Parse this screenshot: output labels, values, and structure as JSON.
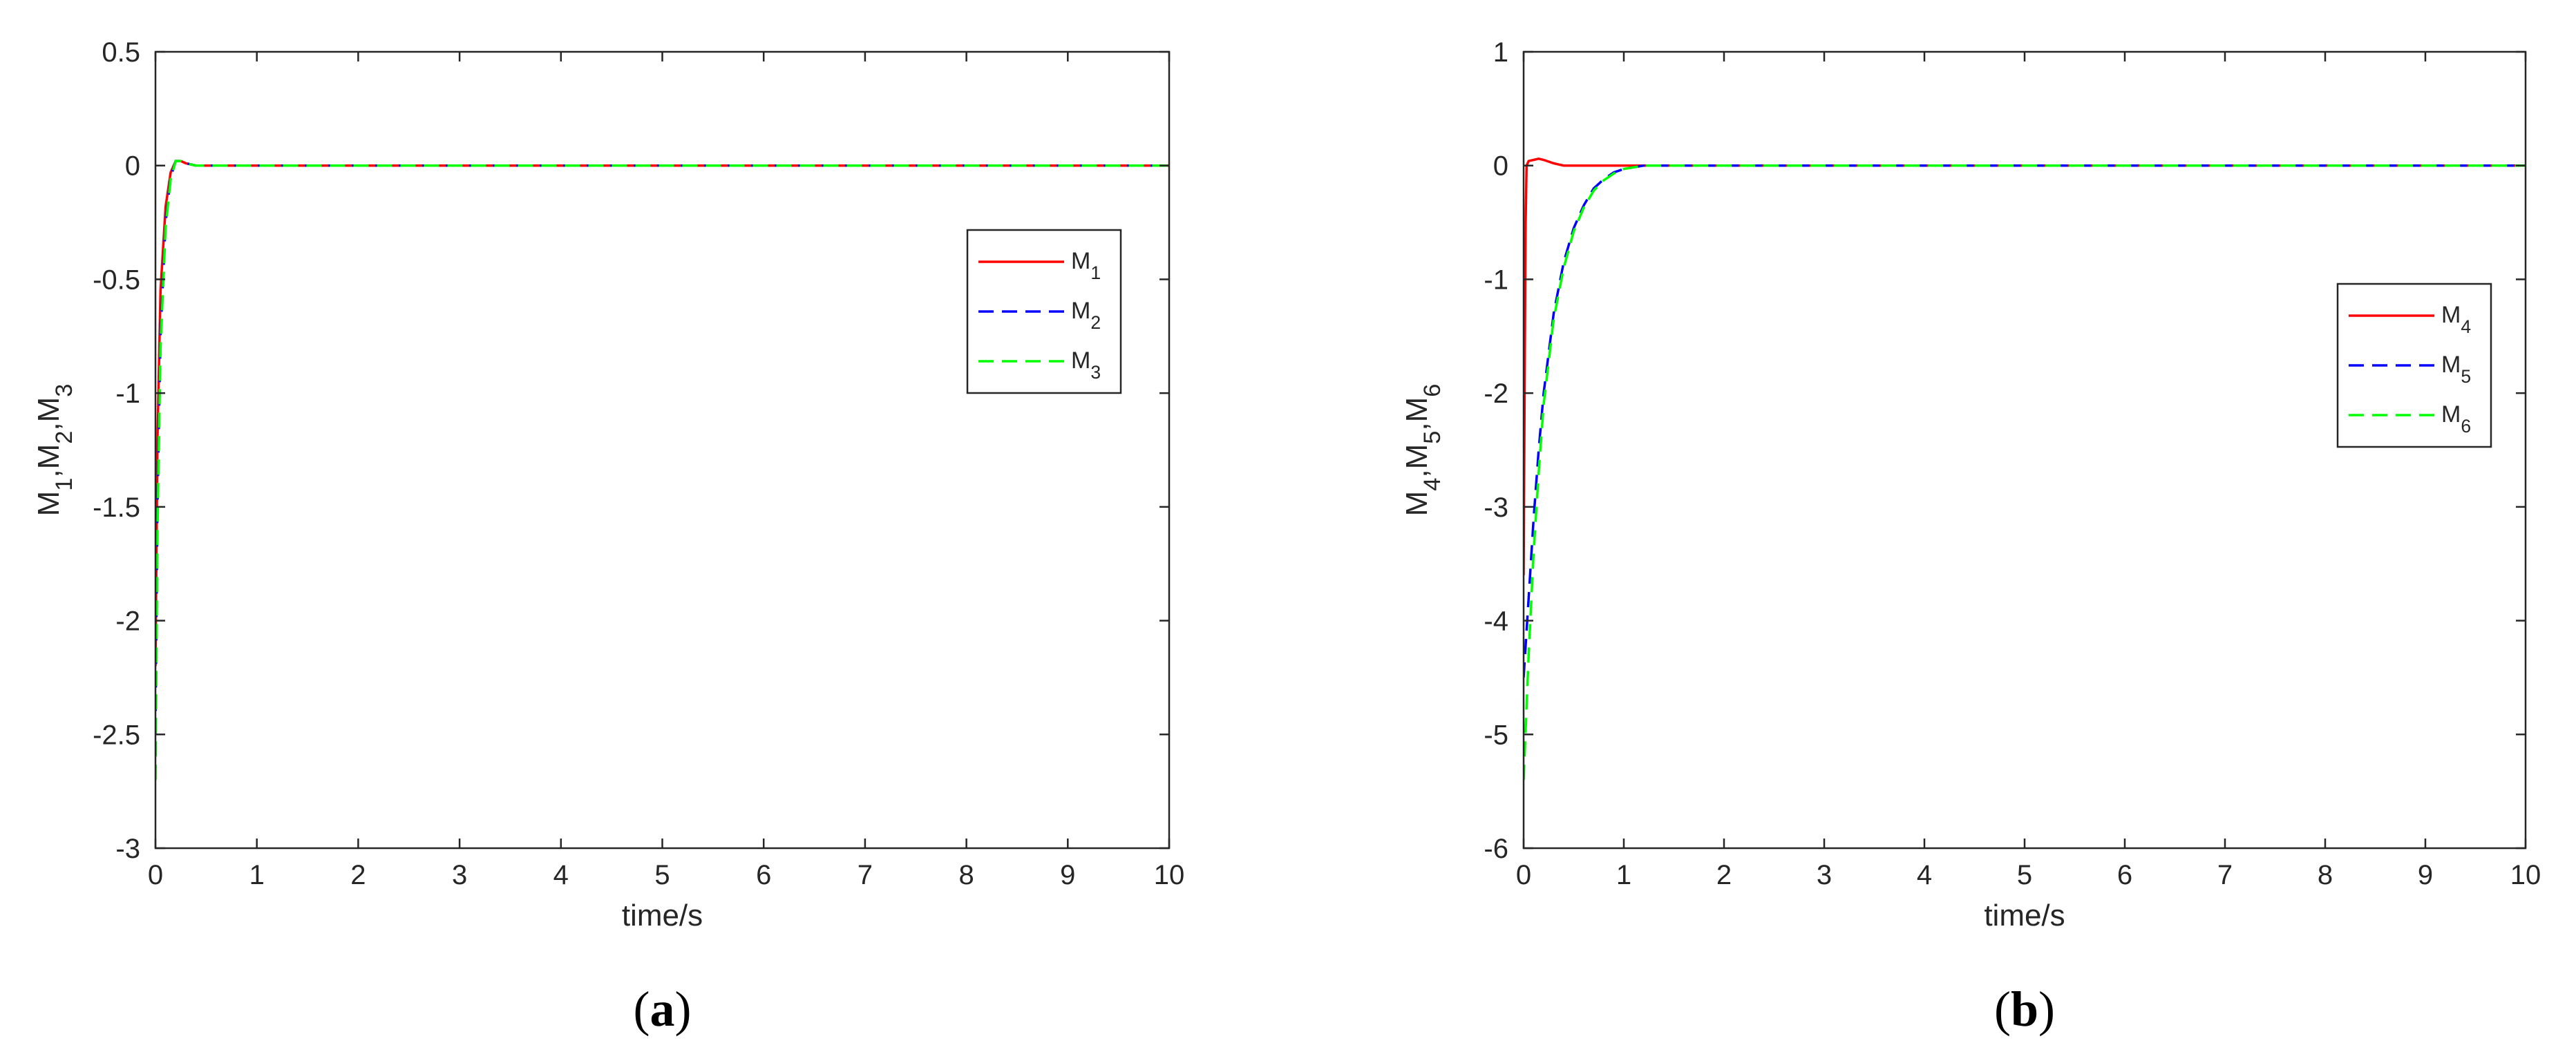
{
  "chart_data": [
    {
      "type": "line",
      "panel_label": "a",
      "xlabel": "time/s",
      "ylabel": "M_1,M_2,M_3",
      "xlim": [
        0,
        10
      ],
      "ylim": [
        -3,
        0.5
      ],
      "x_ticks": [
        0,
        1,
        2,
        3,
        4,
        5,
        6,
        7,
        8,
        9,
        10
      ],
      "y_ticks": [
        0.5,
        0,
        -0.5,
        -1,
        -1.5,
        -2,
        -2.5,
        -3
      ],
      "grid": false,
      "legend_position": "right",
      "series": [
        {
          "name": "M_1",
          "color": "#ff0000",
          "style": "solid",
          "x": [
            0,
            0.02,
            0.05,
            0.1,
            0.15,
            0.2,
            0.25,
            0.3,
            0.4,
            0.5,
            1,
            10
          ],
          "y": [
            -2.2,
            -1.2,
            -0.55,
            -0.18,
            -0.03,
            0.02,
            0.02,
            0.01,
            0.0,
            0.0,
            0.0,
            0.0
          ]
        },
        {
          "name": "M_2",
          "color": "#0000ff",
          "style": "dashed",
          "x": [
            0,
            0.02,
            0.05,
            0.1,
            0.15,
            0.2,
            0.25,
            0.3,
            0.4,
            0.5,
            1,
            10
          ],
          "y": [
            -2.5,
            -1.5,
            -0.75,
            -0.25,
            -0.05,
            0.02,
            0.02,
            0.01,
            0.0,
            0.0,
            0.0,
            0.0
          ]
        },
        {
          "name": "M_3",
          "color": "#00ff00",
          "style": "dashed",
          "x": [
            0,
            0.02,
            0.05,
            0.1,
            0.15,
            0.2,
            0.25,
            0.3,
            0.4,
            0.5,
            1,
            10
          ],
          "y": [
            -2.7,
            -1.6,
            -0.8,
            -0.27,
            -0.06,
            0.02,
            0.02,
            0.01,
            0.0,
            0.0,
            0.0,
            0.0
          ]
        }
      ]
    },
    {
      "type": "line",
      "panel_label": "b",
      "xlabel": "time/s",
      "ylabel": "M_4,M_5,M_6",
      "xlim": [
        0,
        10
      ],
      "ylim": [
        -6,
        1
      ],
      "x_ticks": [
        0,
        1,
        2,
        3,
        4,
        5,
        6,
        7,
        8,
        9,
        10
      ],
      "y_ticks": [
        1,
        0,
        -1,
        -2,
        -3,
        -4,
        -5,
        -6
      ],
      "grid": false,
      "legend_position": "right",
      "series": [
        {
          "name": "M_4",
          "color": "#ff0000",
          "style": "solid",
          "x": [
            0,
            0.01,
            0.02,
            0.03,
            0.05,
            0.1,
            0.15,
            0.2,
            0.3,
            0.4,
            0.6,
            10
          ],
          "y": [
            -3.6,
            -2.0,
            -0.5,
            0.0,
            0.04,
            0.05,
            0.06,
            0.05,
            0.02,
            0.0,
            0.0,
            0.0
          ]
        },
        {
          "name": "M_5",
          "color": "#0000ff",
          "style": "dashed",
          "x": [
            0,
            0.05,
            0.1,
            0.15,
            0.2,
            0.3,
            0.4,
            0.5,
            0.6,
            0.7,
            0.8,
            0.9,
            1.0,
            1.2,
            1.5,
            10
          ],
          "y": [
            -4.5,
            -3.8,
            -3.1,
            -2.5,
            -2.0,
            -1.3,
            -0.85,
            -0.55,
            -0.35,
            -0.2,
            -0.12,
            -0.06,
            -0.03,
            0.0,
            0.0,
            0.0
          ]
        },
        {
          "name": "M_6",
          "color": "#00ff00",
          "style": "dashed",
          "x": [
            0,
            0.05,
            0.1,
            0.15,
            0.2,
            0.3,
            0.4,
            0.5,
            0.6,
            0.7,
            0.8,
            0.9,
            1.0,
            1.2,
            1.5,
            10
          ],
          "y": [
            -5.4,
            -4.3,
            -3.4,
            -2.7,
            -2.1,
            -1.35,
            -0.9,
            -0.58,
            -0.37,
            -0.22,
            -0.13,
            -0.07,
            -0.03,
            0.0,
            0.0,
            0.0
          ]
        }
      ]
    }
  ]
}
